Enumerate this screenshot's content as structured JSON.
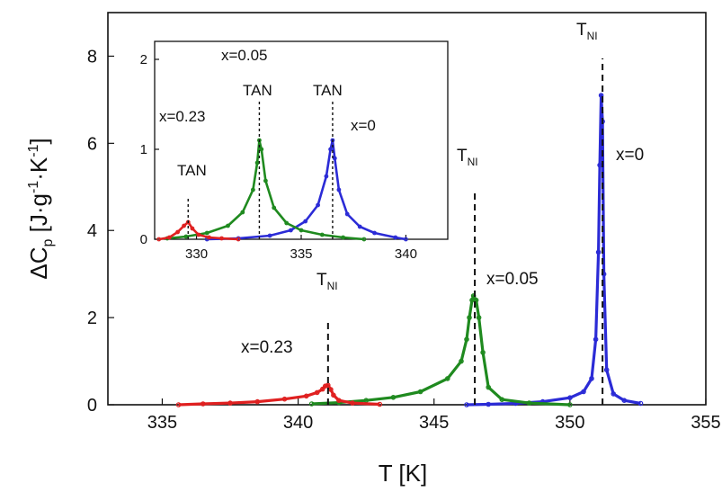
{
  "colors": {
    "x0": "#2b2bd6",
    "x005": "#1f8a1f",
    "x023": "#e02020",
    "axis": "#111111"
  },
  "chart_data": [
    {
      "type": "scatter",
      "panel": "main",
      "xlabel": "T [K]",
      "ylabel_parts": {
        "delta": "ΔC",
        "sub_p": "p",
        "pre": " [J·g",
        "sup1": "-1",
        "mid": "·K",
        "sup2": "-1",
        "post": "]"
      },
      "xlim": [
        333,
        355
      ],
      "ylim": [
        0,
        9
      ],
      "xticks": [
        335,
        340,
        345,
        350,
        355
      ],
      "yticks": [
        0,
        2,
        4,
        6,
        8
      ],
      "grid": false,
      "series": [
        {
          "label": "x=0",
          "color_key": "x0",
          "x": [
            346.2,
            347.0,
            348.0,
            349.0,
            350.0,
            350.5,
            350.8,
            350.95,
            351.05,
            351.1,
            351.15,
            351.2,
            351.25,
            351.35,
            351.6,
            352.0,
            352.6
          ],
          "y": [
            0.0,
            0.01,
            0.03,
            0.07,
            0.16,
            0.3,
            0.6,
            1.5,
            3.5,
            5.5,
            7.1,
            6.5,
            3.0,
            0.8,
            0.25,
            0.1,
            0.03
          ]
        },
        {
          "label": "x=0.05",
          "color_key": "x005",
          "x": [
            340.5,
            341.5,
            342.5,
            343.5,
            344.5,
            345.5,
            346.0,
            346.2,
            346.3,
            346.4,
            346.45,
            346.55,
            346.65,
            346.8,
            347.0,
            347.5,
            348.5,
            350.0
          ],
          "y": [
            0.02,
            0.05,
            0.1,
            0.17,
            0.3,
            0.6,
            1.0,
            1.5,
            2.0,
            2.4,
            2.5,
            2.4,
            2.0,
            1.2,
            0.4,
            0.12,
            0.04,
            0.0
          ]
        },
        {
          "label": "x=0.23",
          "color_key": "x023",
          "x": [
            335.6,
            336.5,
            337.5,
            338.5,
            339.5,
            340.3,
            340.7,
            340.9,
            341.0,
            341.1,
            341.2,
            341.3,
            341.5,
            342.0,
            343.0
          ],
          "y": [
            0.0,
            0.02,
            0.04,
            0.07,
            0.13,
            0.2,
            0.28,
            0.36,
            0.43,
            0.45,
            0.35,
            0.22,
            0.1,
            0.04,
            0.01
          ]
        }
      ],
      "reference_lines": [
        {
          "x": 351.2,
          "y_top": 7.95,
          "label": "T_NI"
        },
        {
          "x": 346.5,
          "y_top": 4.95,
          "label": "T_NI"
        },
        {
          "x": 341.1,
          "y_top": 1.9,
          "label": "T_NI"
        }
      ],
      "annotations": {
        "tni_base": "T",
        "tni_sub": "NI",
        "lab_x0": "x=0",
        "lab_x005": "x=0.05",
        "lab_x023": "x=0.23"
      }
    },
    {
      "type": "scatter",
      "panel": "inset",
      "xlim": [
        328,
        342
      ],
      "ylim": [
        0,
        2.2
      ],
      "xticks": [
        330,
        335,
        340
      ],
      "yticks": [
        0,
        1,
        2
      ],
      "series": [
        {
          "label": "x=0",
          "color_key": "x0",
          "x": [
            330.5,
            332.0,
            333.5,
            334.5,
            335.2,
            335.8,
            336.2,
            336.4,
            336.5,
            336.6,
            336.8,
            337.2,
            337.8,
            338.5,
            339.5,
            340.0
          ],
          "y": [
            0.0,
            0.01,
            0.04,
            0.1,
            0.2,
            0.38,
            0.7,
            1.0,
            1.1,
            0.9,
            0.55,
            0.28,
            0.14,
            0.07,
            0.02,
            0.0
          ]
        },
        {
          "label": "x=0.05",
          "color_key": "x005",
          "x": [
            328.6,
            329.5,
            330.5,
            331.5,
            332.2,
            332.7,
            332.9,
            333.0,
            333.1,
            333.3,
            333.7,
            334.3,
            335.0,
            336.0,
            337.0,
            338.0
          ],
          "y": [
            0.01,
            0.03,
            0.07,
            0.15,
            0.3,
            0.55,
            0.85,
            1.1,
            1.0,
            0.65,
            0.35,
            0.18,
            0.1,
            0.05,
            0.02,
            0.0
          ]
        },
        {
          "label": "x=0.23",
          "color_key": "x023",
          "x": [
            328.2,
            328.7,
            329.1,
            329.4,
            329.6,
            329.8,
            330.1,
            330.6,
            331.2,
            332.0
          ],
          "y": [
            0.0,
            0.02,
            0.08,
            0.15,
            0.19,
            0.12,
            0.05,
            0.02,
            0.01,
            0.0
          ]
        }
      ],
      "reference_lines": [
        {
          "x": 336.5,
          "y_top": 1.55,
          "label": "T_AN"
        },
        {
          "x": 333.0,
          "y_top": 1.55,
          "label": "T_AN"
        },
        {
          "x": 329.6,
          "y_top": 0.45,
          "label": "T_AN"
        }
      ],
      "annotations": {
        "tan_base": "T",
        "tan_sub": "AN",
        "lab_x0": "x=0",
        "lab_x005": "x=0.05",
        "lab_x023": "x=0.23"
      }
    }
  ]
}
